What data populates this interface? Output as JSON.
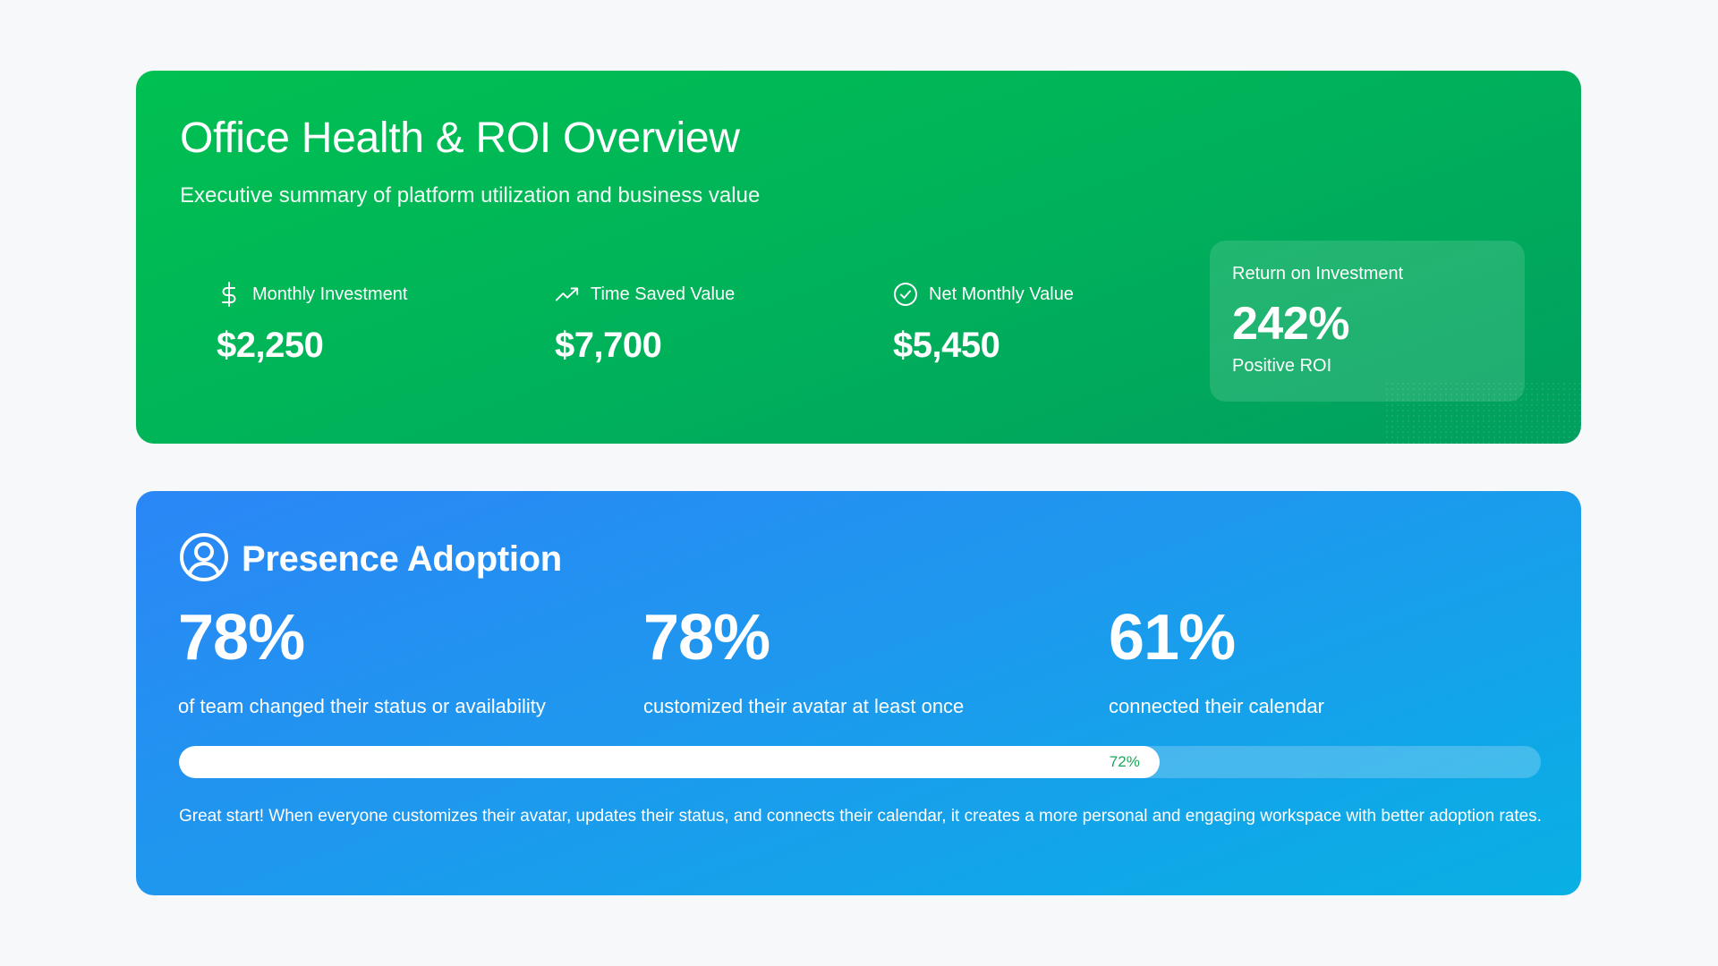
{
  "roi": {
    "title": "Office Health & ROI Overview",
    "subtitle": "Executive summary of platform utilization and business value",
    "metrics": [
      {
        "icon": "dollar-icon",
        "label": "Monthly Investment",
        "value": "$2,250"
      },
      {
        "icon": "trending-up-icon",
        "label": "Time Saved Value",
        "value": "$7,700"
      },
      {
        "icon": "check-circle-icon",
        "label": "Net Monthly Value",
        "value": "$5,450"
      }
    ],
    "return_box": {
      "label": "Return on Investment",
      "value": "242%",
      "sub": "Positive ROI"
    },
    "colors": {
      "gradient_start": "#00c051",
      "gradient_end": "#009f5f"
    }
  },
  "presence": {
    "title": "Presence Adoption",
    "icon": "user-circle-icon",
    "stats": [
      {
        "value": "78%",
        "desc": "of team changed their status or availability"
      },
      {
        "value": "78%",
        "desc": "customized their avatar at least once"
      },
      {
        "value": "61%",
        "desc": "connected their calendar"
      }
    ],
    "progress": {
      "percent": 72,
      "label": "72%"
    },
    "note": "Great start! When everyone customizes their avatar, updates their status, and connects their calendar, it creates a more personal and engaging workspace with better adoption rates.",
    "colors": {
      "gradient_start": "#2b86f6",
      "gradient_end": "#08b0e4",
      "progress_text": "#1aa75a"
    }
  }
}
